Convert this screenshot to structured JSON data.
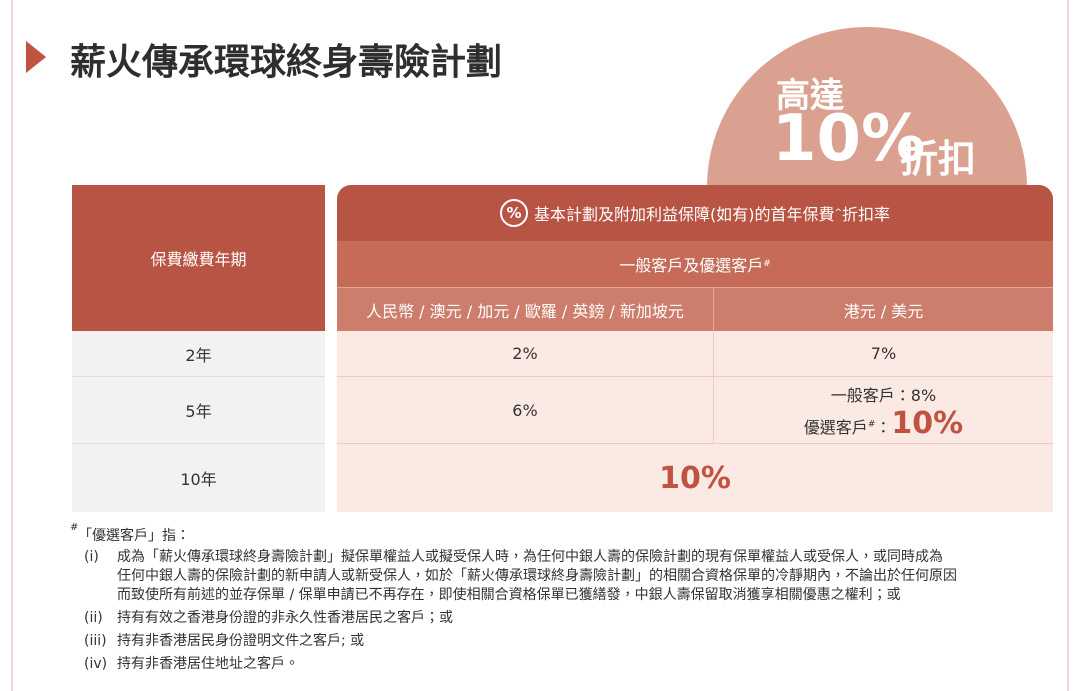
{
  "header": {
    "title": "薪火傳承環球終身壽險計劃"
  },
  "badge": {
    "line1": "高達",
    "value": "10%",
    "suffix": "折扣"
  },
  "table": {
    "header": {
      "term": "保費繳費年期",
      "rate_icon": "%",
      "rate_title": "基本計劃及附加利益保障(如有)的首年保費",
      "rate_title_mark": "^",
      "rate_title_suffix": "折扣率",
      "customers": "一般客戶及優選客戶",
      "customers_mark": "#",
      "currency_a": "人民幣 / 澳元 / 加元 / 歐羅 / 英鎊 / 新加坡元",
      "currency_b": "港元 / 美元"
    },
    "rows": [
      {
        "term": "2年",
        "rate_a": "2%",
        "rate_b": "7%"
      },
      {
        "term": "5年",
        "rate_a": "6%",
        "rate_b_general": "一般客戶：8%",
        "rate_b_preferred_label": "優選客戶",
        "rate_b_preferred_mark": "#",
        "rate_b_preferred_colon": "：",
        "rate_b_preferred": "10%"
      },
      {
        "term": "10年",
        "rate_all": "10%"
      }
    ]
  },
  "notes": {
    "mark": "#",
    "title": "「優選客戶」指：",
    "items": [
      {
        "label": "(i)",
        "lines": [
          "成為「薪火傳承環球終身壽險計劃」擬保單權益人或擬受保人時，為任何中銀人壽的保險計劃的現有保單權益人或受保人，或同時成為",
          "任何中銀人壽的保險計劃的新申請人或新受保人，如於「薪火傳承環球終身壽險計劃」的相關合資格保單的冷靜期內，不論出於任何原因",
          "而致使所有前述的並存保單 / 保單申請已不再存在，即使相關合資格保單已獲繕發，中銀人壽保留取消獲享相關優惠之權利；或"
        ]
      },
      {
        "label": "(ii)",
        "lines": [
          "持有有效之香港身份證的非永久性香港居民之客戶；或"
        ]
      },
      {
        "label": "(iii)",
        "lines": [
          "持有非香港居民身份證明文件之客戶; 或"
        ]
      },
      {
        "label": "(iv)",
        "lines": [
          "持有非香港居住地址之客戶。"
        ]
      }
    ]
  }
}
